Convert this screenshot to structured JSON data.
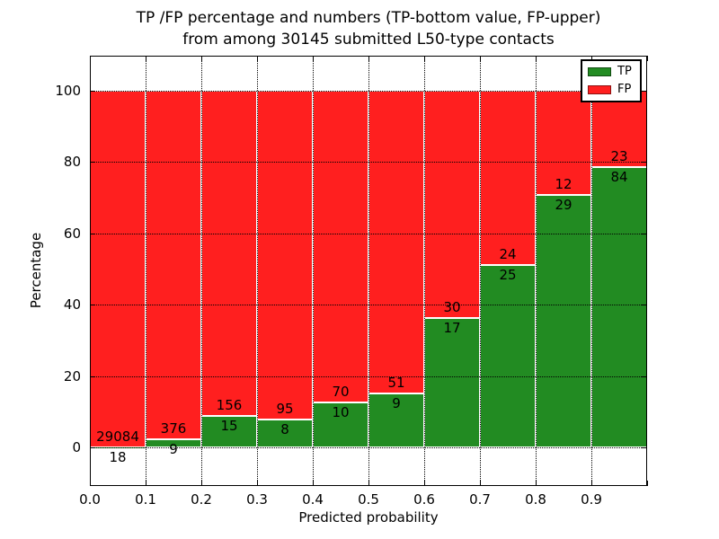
{
  "figure": {
    "title_line1": "TP /FP percentage and numbers (TP-bottom value, FP-upper)",
    "title_line2": "from among 30145 submitted L50-type contacts",
    "xlabel": "Predicted probability",
    "ylabel": "Percentage"
  },
  "legend": {
    "items": [
      {
        "label": "TP",
        "color": "#228b22"
      },
      {
        "label": "FP",
        "color": "#ff1f1f"
      }
    ]
  },
  "chart_data": {
    "type": "bar",
    "stacked": true,
    "title": "TP /FP percentage and numbers (TP-bottom value, FP-upper) from among 30145 submitted L50-type contacts",
    "xlabel": "Predicted probability",
    "ylabel": "Percentage",
    "total_contacts": 30145,
    "bins": [
      0.0,
      0.1,
      0.2,
      0.3,
      0.4,
      0.5,
      0.6,
      0.7,
      0.8,
      0.9
    ],
    "bin_width": 0.1,
    "x_tick_labels": [
      "0.0",
      "0.1",
      "0.2",
      "0.3",
      "0.4",
      "0.5",
      "0.6",
      "0.7",
      "0.8",
      "0.9"
    ],
    "y_ticks": [
      0,
      20,
      40,
      60,
      80,
      100
    ],
    "xlim": [
      0.0,
      1.0
    ],
    "ylim": [
      -11,
      110
    ],
    "grid": true,
    "legend_position": "upper right",
    "series": [
      {
        "name": "TP",
        "color": "#228b22",
        "counts": [
          18,
          9,
          15,
          8,
          10,
          9,
          17,
          25,
          29,
          84
        ],
        "percent": [
          0.06,
          2.34,
          8.77,
          7.77,
          12.5,
          15.0,
          36.17,
          51.02,
          70.73,
          78.5
        ]
      },
      {
        "name": "FP",
        "color": "#ff1f1f",
        "counts": [
          29084,
          376,
          156,
          95,
          70,
          51,
          30,
          24,
          12,
          23
        ],
        "percent": [
          99.94,
          97.66,
          91.23,
          92.23,
          87.5,
          85.0,
          63.83,
          48.98,
          29.27,
          21.5
        ]
      }
    ]
  }
}
